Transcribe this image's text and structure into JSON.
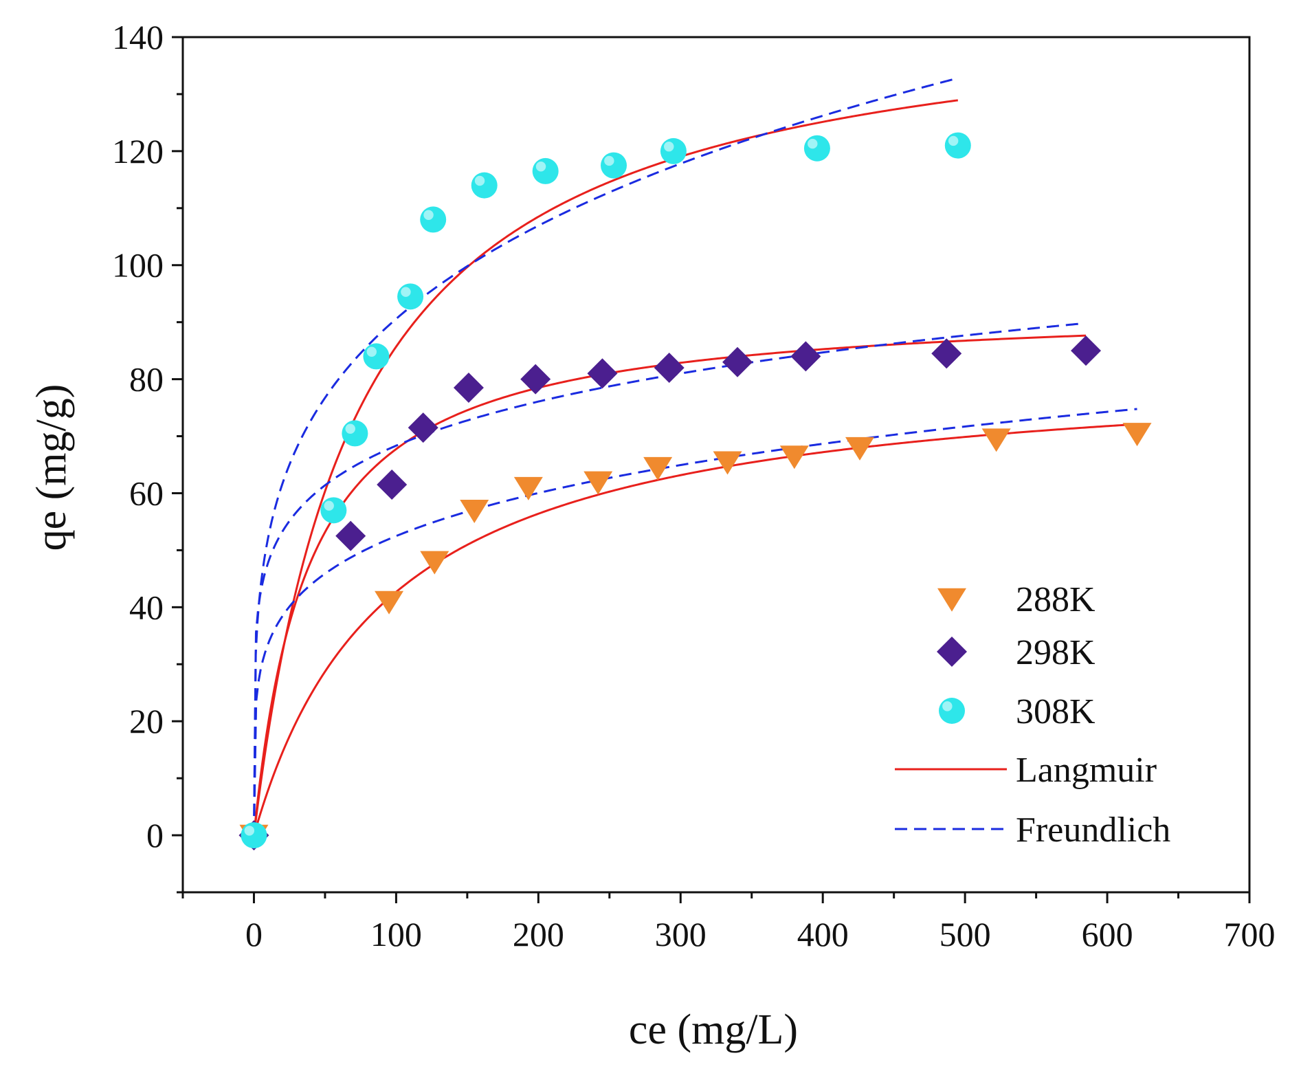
{
  "chart_data": {
    "type": "scatter",
    "xlabel": "ce (mg/L)",
    "ylabel": "qe (mg/g)",
    "xlim": [
      -50,
      700
    ],
    "ylim": [
      -10,
      140
    ],
    "x_ticks": [
      "0",
      "100",
      "200",
      "300",
      "400",
      "500",
      "600",
      "700"
    ],
    "x_tick_values": [
      0,
      100,
      200,
      300,
      400,
      500,
      600,
      700
    ],
    "y_ticks": [
      "0",
      "20",
      "40",
      "60",
      "80",
      "100",
      "120",
      "140"
    ],
    "y_tick_values": [
      0,
      20,
      40,
      60,
      80,
      100,
      120,
      140
    ],
    "legend_position": "bottom-right",
    "series": [
      {
        "name": "288K",
        "marker": "triangle-down",
        "color": "#F08A2E",
        "x": [
          0,
          95,
          127,
          155,
          193,
          242,
          284,
          333,
          380,
          426,
          522,
          621
        ],
        "y": [
          0,
          41,
          48,
          57,
          61,
          62,
          64.5,
          65.5,
          66.5,
          68,
          69.5,
          70.5
        ]
      },
      {
        "name": "298K",
        "marker": "diamond",
        "color": "#4B1F8F",
        "x": [
          0,
          68,
          97,
          119,
          151,
          198,
          245,
          292,
          340,
          388,
          487,
          585
        ],
        "y": [
          0,
          52.5,
          61.5,
          71.5,
          78.5,
          80,
          81,
          82,
          83,
          84,
          84.5,
          85
        ]
      },
      {
        "name": "308K",
        "marker": "circle",
        "color": "#2EE6EA",
        "x": [
          0,
          56,
          71,
          86,
          110,
          126,
          162,
          205,
          253,
          295,
          396,
          495
        ],
        "y": [
          0,
          57,
          70.5,
          84,
          94.5,
          108,
          114,
          116.5,
          117.5,
          120,
          120.5,
          121
        ]
      }
    ],
    "fits": [
      {
        "name": "Langmuir",
        "style": "solid",
        "color": "#E8201C",
        "curves": [
          {
            "for": "288K",
            "model": "langmuir",
            "qm": 83.1,
            "K": 0.01056,
            "x_max": 621
          },
          {
            "for": "298K",
            "model": "langmuir",
            "qm": 93.3,
            "K": 0.0265,
            "x_max": 585
          },
          {
            "for": "308K",
            "model": "langmuir",
            "qm": 147.8,
            "K": 0.0138,
            "x_max": 495
          }
        ]
      },
      {
        "name": "Freundlich",
        "style": "dashed",
        "color": "#1A2BE0",
        "curves": [
          {
            "for": "288K",
            "model": "freundlich",
            "Kf": 21.5,
            "n": 5.16,
            "x_max": 621
          },
          {
            "for": "298K",
            "model": "freundlich",
            "Kf": 33.5,
            "n": 6.46,
            "x_max": 580
          },
          {
            "for": "308K",
            "model": "freundlich",
            "Kf": 30.1,
            "n": 4.18,
            "x_max": 495
          }
        ]
      }
    ]
  }
}
